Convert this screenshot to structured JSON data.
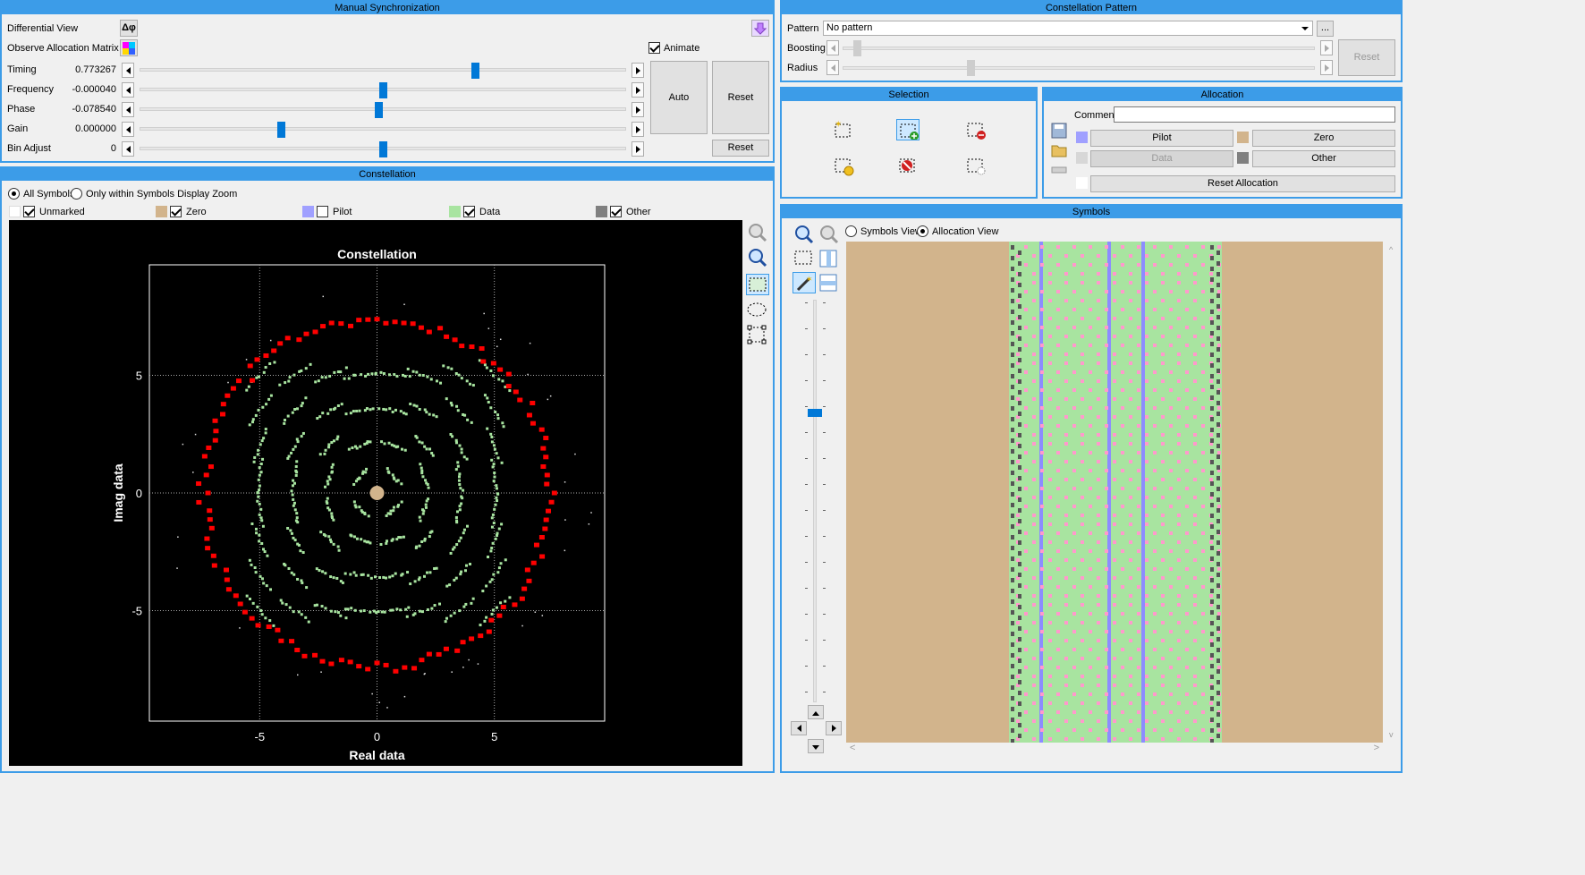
{
  "sync": {
    "title": "Manual Synchronization",
    "diff_view_label": "Differential View",
    "diff_btn": "Δφ",
    "observe_label": "Observe Allocation Matrix",
    "animate_label": "Animate",
    "rows": [
      {
        "label": "Timing",
        "value": "0.773267",
        "pos": 0.69
      },
      {
        "label": "Frequency",
        "value": "-0.000040",
        "pos": 0.5
      },
      {
        "label": "Phase",
        "value": "-0.078540",
        "pos": 0.49
      },
      {
        "label": "Gain",
        "value": "0.000000",
        "pos": 0.29
      },
      {
        "label": "Bin Adjust",
        "value": "0",
        "pos": 0.5
      }
    ],
    "auto": "Auto",
    "reset": "Reset",
    "reset2": "Reset"
  },
  "pattern": {
    "title": "Constellation Pattern",
    "pattern_label": "Pattern",
    "pattern_value": "No pattern",
    "dots": "...",
    "boosting_label": "Boosting",
    "radius_label": "Radius",
    "reset": "Reset",
    "boosting_pos": 0.03,
    "radius_pos": 0.27
  },
  "selection": {
    "title": "Selection"
  },
  "allocation": {
    "title": "Allocation",
    "comment_label": "Comment",
    "comment_value": "",
    "pilot": "Pilot",
    "zero": "Zero",
    "data": "Data",
    "other": "Other",
    "reset_alloc": "Reset Allocation",
    "colors": {
      "pilot": "#a0a0ff",
      "zero": "#d2b48c",
      "data": "#d7d7d7",
      "other": "#808080"
    }
  },
  "constellation": {
    "title": "Constellation",
    "radio_all": "All Symbols",
    "radio_zoom": "Only within Symbols Display Zoom",
    "legend": [
      {
        "label": "Unmarked",
        "color": "#ffffff",
        "checked": true
      },
      {
        "label": "Zero",
        "color": "#d2b48c",
        "checked": true
      },
      {
        "label": "Pilot",
        "color": "#a0a0ff",
        "checked": false
      },
      {
        "label": "Data",
        "color": "#a8e4a0",
        "checked": true
      },
      {
        "label": "Other",
        "color": "#808080",
        "checked": true
      }
    ]
  },
  "symbols": {
    "title": "Symbols",
    "radio_symbols": "Symbols View",
    "radio_alloc": "Allocation View",
    "colors": {
      "zero": "#d2b48c",
      "data": "#a8e4a0",
      "pilot": "#8c8cff",
      "dots": "#ff99cc",
      "dark": "#555555"
    },
    "zoom_level": 0.27
  },
  "chart_data": {
    "type": "scatter",
    "title": "Constellation",
    "xlabel": "Real data",
    "ylabel": "Imag data",
    "xlim": [
      -9.7,
      9.7
    ],
    "ylim": [
      -9.7,
      9.7
    ],
    "xticks": [
      -5,
      0,
      5
    ],
    "yticks": [
      -5,
      0,
      5
    ],
    "grid": true,
    "series": [
      {
        "name": "Zero",
        "color": "#d2b48c",
        "points": [
          [
            0,
            0
          ]
        ]
      },
      {
        "name": "Data",
        "color": "#a8e4a0",
        "grid_levels": [
          -5,
          -3.5,
          -2,
          -0.7,
          0.7,
          2,
          3.5,
          5
        ]
      },
      {
        "name": "Other",
        "color": "#ff0000",
        "ring_radius": 7.4
      }
    ]
  }
}
